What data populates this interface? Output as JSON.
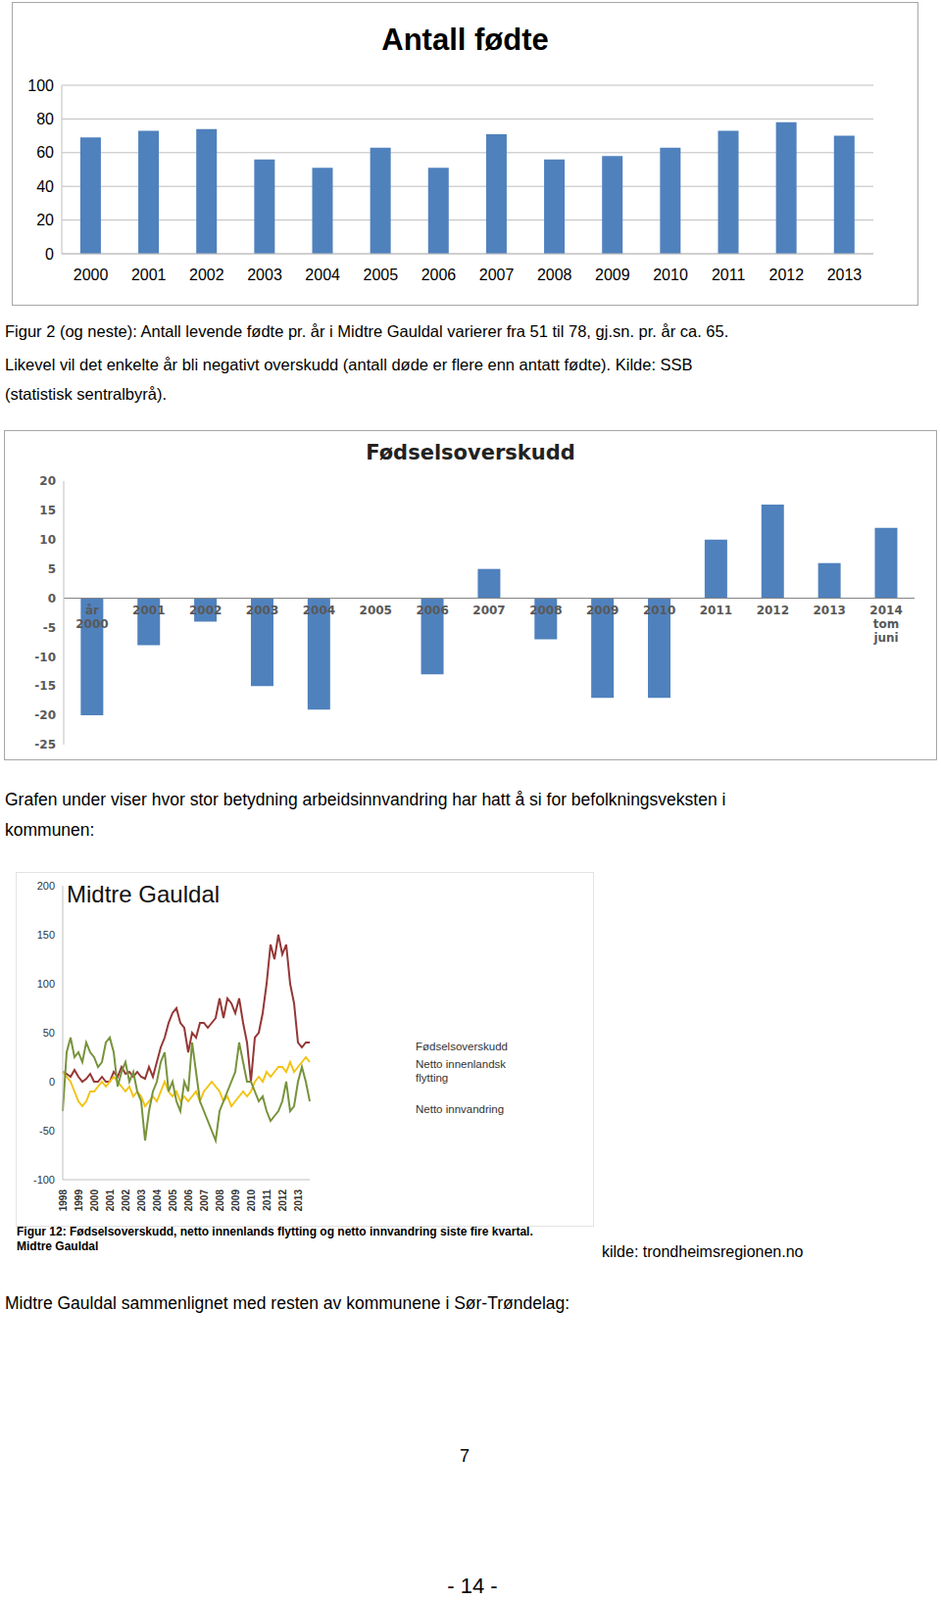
{
  "chart_data": [
    {
      "type": "bar",
      "title": "Antall fødte",
      "categories": [
        "2000",
        "2001",
        "2002",
        "2003",
        "2004",
        "2005",
        "2006",
        "2007",
        "2008",
        "2009",
        "2010",
        "2011",
        "2012",
        "2013"
      ],
      "values": [
        69,
        73,
        74,
        56,
        51,
        63,
        51,
        71,
        56,
        58,
        63,
        73,
        78,
        70
      ],
      "color": "#4f81bd",
      "ylim": [
        0,
        100
      ],
      "yticks": [
        0,
        20,
        40,
        60,
        80,
        100
      ],
      "grid": true
    },
    {
      "type": "bar",
      "title": "Fødselsoverskudd",
      "categories": [
        "år 2000",
        "2001",
        "2002",
        "2003",
        "2004",
        "2005",
        "2006",
        "2007",
        "2008",
        "2009",
        "2010",
        "2011",
        "2012",
        "2013",
        "2014 tom juni"
      ],
      "values": [
        -20,
        -8,
        -4,
        -15,
        -19,
        0,
        -13,
        5,
        -7,
        -17,
        -17,
        10,
        16,
        6,
        12
      ],
      "color": "#4f81bd",
      "ylim": [
        -25,
        20
      ],
      "yticks": [
        -25,
        -20,
        -15,
        -10,
        -5,
        0,
        5,
        10,
        15,
        20
      ],
      "grid": false
    },
    {
      "type": "line",
      "title": "Midtre Gauldal",
      "categories": [
        "1998",
        null,
        null,
        null,
        "1999",
        null,
        null,
        null,
        "2000",
        null,
        null,
        null,
        "2001",
        null,
        null,
        null,
        "2002",
        null,
        null,
        null,
        "2003",
        null,
        null,
        null,
        "2004",
        null,
        null,
        null,
        "2005",
        null,
        null,
        null,
        "2006",
        null,
        null,
        null,
        "2007",
        null,
        null,
        null,
        "2008",
        null,
        null,
        null,
        "2009",
        null,
        null,
        null,
        "2010",
        null,
        null,
        null,
        "2011",
        null,
        null,
        null,
        "2012",
        null,
        null,
        null,
        "2013",
        null,
        null,
        null
      ],
      "series": [
        {
          "name": "Netto innvandring",
          "color": "#953735",
          "values": [
            10,
            8,
            5,
            12,
            5,
            0,
            3,
            8,
            0,
            0,
            5,
            0,
            0,
            10,
            5,
            15,
            8,
            10,
            5,
            10,
            5,
            3,
            15,
            5,
            20,
            35,
            45,
            60,
            70,
            75,
            60,
            55,
            30,
            50,
            45,
            60,
            60,
            55,
            60,
            65,
            85,
            65,
            85,
            80,
            70,
            85,
            60,
            40,
            0,
            45,
            50,
            70,
            100,
            140,
            125,
            150,
            130,
            140,
            100,
            80,
            40,
            35,
            40,
            40
          ]
        },
        {
          "name": "Fødselsoverskudd",
          "color": "#f2c314",
          "values": [
            10,
            5,
            0,
            -10,
            -20,
            -25,
            -20,
            -10,
            -10,
            -5,
            0,
            -5,
            0,
            5,
            0,
            -5,
            -10,
            -5,
            -15,
            -10,
            -15,
            -25,
            -20,
            -15,
            -20,
            -10,
            0,
            -10,
            -15,
            -10,
            -20,
            -15,
            -20,
            -15,
            -10,
            -20,
            -10,
            -5,
            0,
            -5,
            -10,
            -20,
            -15,
            -25,
            -20,
            -15,
            -10,
            -15,
            -10,
            0,
            5,
            0,
            10,
            5,
            10,
            15,
            15,
            10,
            20,
            10,
            15,
            20,
            25,
            20
          ]
        },
        {
          "name": "Netto innenlandsk flytting",
          "color": "#77933c",
          "values": [
            -30,
            30,
            45,
            25,
            30,
            20,
            40,
            30,
            25,
            15,
            20,
            40,
            45,
            30,
            -5,
            10,
            20,
            0,
            10,
            -10,
            -20,
            -60,
            -30,
            -10,
            0,
            20,
            30,
            -10,
            0,
            -20,
            -30,
            0,
            -10,
            40,
            10,
            -20,
            -30,
            -40,
            -50,
            -60,
            -30,
            -20,
            -10,
            0,
            10,
            40,
            20,
            0,
            0,
            -10,
            -20,
            -15,
            -30,
            -40,
            -35,
            -30,
            -20,
            0,
            -30,
            -25,
            0,
            15,
            0,
            -20
          ]
        }
      ],
      "ylim": [
        -100,
        200
      ],
      "yticks": [
        -100,
        -50,
        0,
        50,
        100,
        150,
        200
      ],
      "legend": "right",
      "grid": false
    }
  ],
  "document": {
    "caption_lines": [
      "Figur 2 (og neste): Antall levende fødte pr. år i Midtre Gauldal varierer fra 51 til 78, gj.sn. pr. år ca. 65.",
      "Likevel vil det enkelte år bli negativt overskudd (antall døde er flere enn antatt fødte). Kilde: SSB",
      "(statistisk sentralbyrå)."
    ],
    "paragraph_lines": [
      "Grafen under viser hvor stor betydning arbeidsinnvandring har hatt å si for befolkningsveksten i",
      "kommunen:"
    ],
    "figure_caption_lines": [
      "Figur 12: Fødselsoverskudd, netto innenlands flytting og netto innvandring siste fire kvartal.",
      "Midtre Gauldal"
    ],
    "source": "kilde: trondheimsregionen.no",
    "heading": "Midtre Gauldal sammenlignet med resten av kommunene i Sør-Trøndelag:",
    "page_number": "7",
    "page_footer": "- 14 -"
  }
}
